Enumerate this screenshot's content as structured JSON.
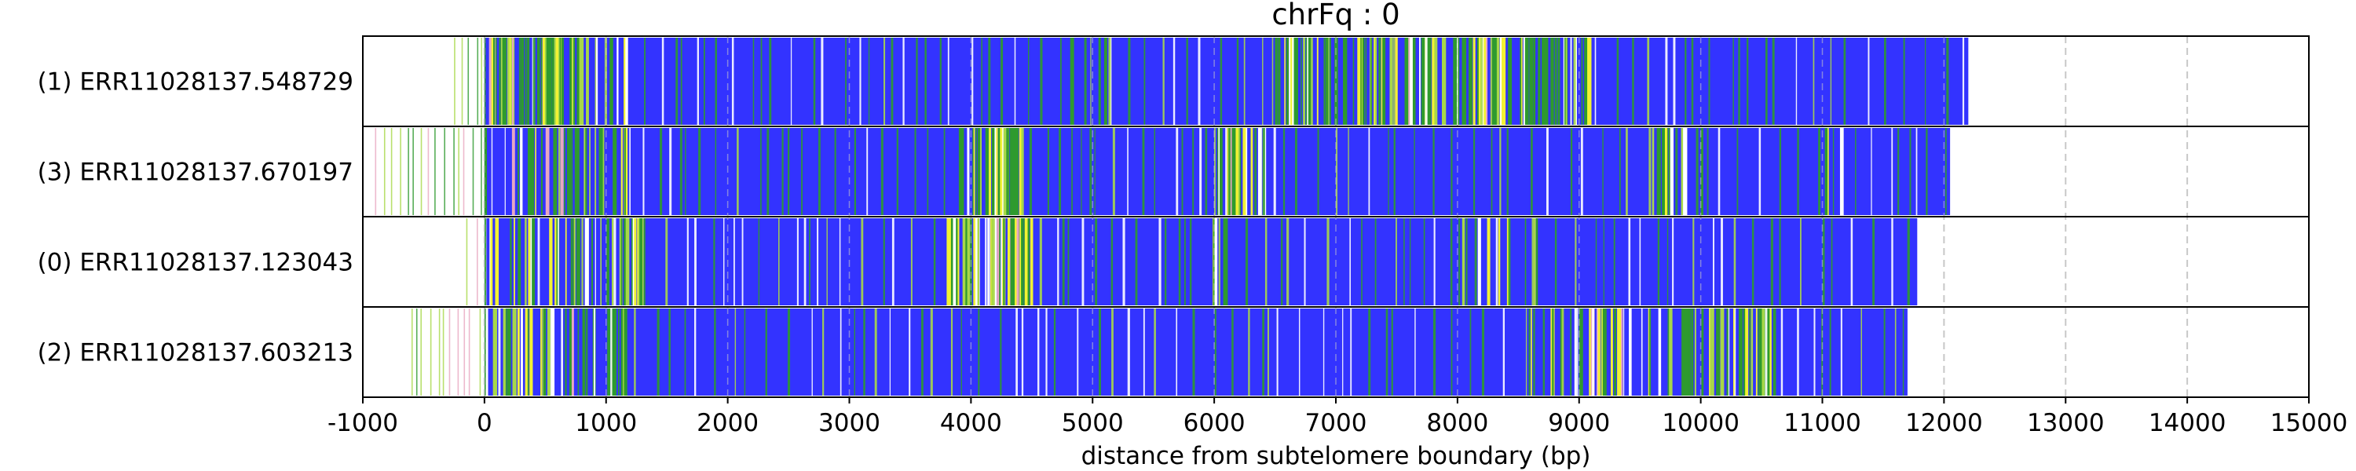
{
  "chart_data": {
    "type": "heatmap",
    "title": "chrFq : 0",
    "xlabel": "distance from subtelomere boundary (bp)",
    "ylabel": "",
    "xlim": [
      -1000,
      15000
    ],
    "xticks": [
      -1000,
      0,
      1000,
      2000,
      3000,
      4000,
      5000,
      6000,
      7000,
      8000,
      9000,
      10000,
      11000,
      12000,
      13000,
      14000,
      15000
    ],
    "xtick_labels": [
      "-1000",
      "0",
      "1000",
      "2000",
      "3000",
      "4000",
      "5000",
      "6000",
      "7000",
      "8000",
      "9000",
      "10000",
      "11000",
      "12000",
      "13000",
      "14000",
      "15000"
    ],
    "grid": "vertical dashed at each x tick",
    "rows": [
      {
        "label": "(1) ERR11028137.548729",
        "start": -250,
        "read_start": 0,
        "end": 12200,
        "mixed_regions": [
          [
            -250,
            1200,
            0.55
          ],
          [
            6500,
            9100,
            0.6
          ],
          [
            4400,
            5200,
            0.08
          ]
        ]
      },
      {
        "label": "(3) ERR11028137.670197",
        "start": -900,
        "read_start": 0,
        "end": 12050,
        "mixed_regions": [
          [
            -900,
            1200,
            0.4
          ],
          [
            3900,
            4450,
            0.7
          ],
          [
            6000,
            6400,
            0.7
          ],
          [
            9600,
            10000,
            0.45
          ],
          [
            11000,
            11300,
            0.45
          ]
        ]
      },
      {
        "label": "(0) ERR11028137.123043",
        "start": -150,
        "read_start": 0,
        "end": 11780,
        "mixed_regions": [
          [
            -150,
            1300,
            0.4
          ],
          [
            3800,
            4500,
            0.8
          ],
          [
            5950,
            6100,
            0.3
          ],
          [
            8000,
            8700,
            0.2
          ]
        ]
      },
      {
        "label": "(2) ERR11028137.603213",
        "start": -600,
        "read_start": 0,
        "end": 11700,
        "mixed_regions": [
          [
            -600,
            1150,
            0.4
          ],
          [
            9000,
            10600,
            0.45
          ],
          [
            8500,
            9000,
            0.2
          ]
        ]
      }
    ],
    "colors": {
      "base": "#3333ff",
      "green": "#2e9a2e",
      "yellow": "#f2f233",
      "lightgreen": "#a8d848",
      "white": "#ffffff",
      "pink": "#e8a8c0",
      "grid": "#c8c8c8"
    }
  }
}
